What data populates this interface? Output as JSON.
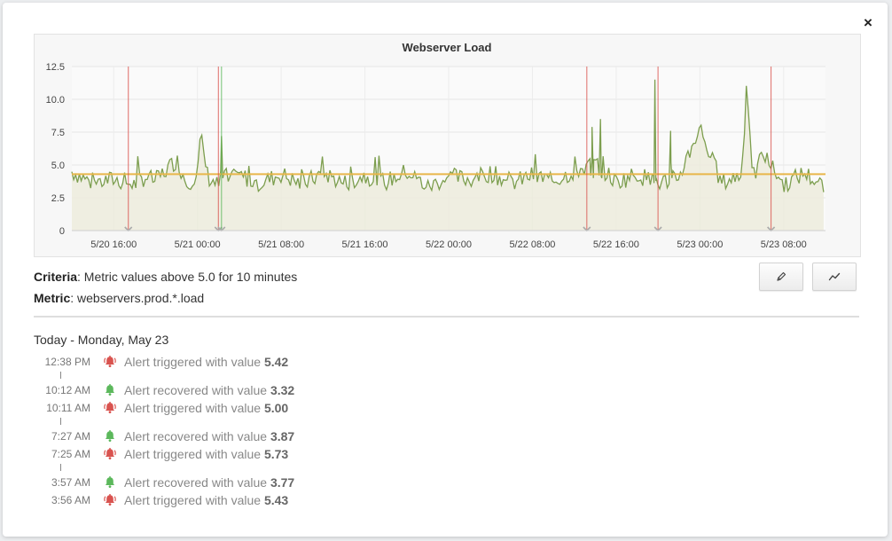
{
  "dialog": {
    "close_label": "×"
  },
  "chart_data": {
    "type": "line",
    "title": "Webserver Load",
    "xlabel": "",
    "ylabel": "",
    "ylim": [
      0,
      12.5
    ],
    "yticks": [
      "0",
      "2.5",
      "5.0",
      "7.5",
      "10.0",
      "12.5"
    ],
    "xticks": [
      "5/20 16:00",
      "5/21 00:00",
      "5/21 08:00",
      "5/21 16:00",
      "5/22 00:00",
      "5/22 08:00",
      "5/22 16:00",
      "5/23 00:00",
      "5/23 08:00"
    ],
    "x_start": "5/20 12:00",
    "x_end": "5/23 12:00",
    "grid": true,
    "threshold": 4.3,
    "series": [
      {
        "name": "",
        "color": "#7c9e4e",
        "x_hours": [
          0,
          2,
          4,
          6,
          7,
          8,
          9,
          10,
          11,
          12,
          12.3,
          13,
          14,
          14.4,
          15,
          16,
          18,
          20,
          22,
          24,
          26,
          28,
          30,
          32,
          34,
          36,
          38,
          40,
          42,
          44,
          46,
          48,
          50,
          52,
          54,
          56,
          58,
          60,
          62,
          64,
          64.5,
          65,
          66,
          68,
          70,
          72,
          74,
          74.3,
          75,
          76,
          78,
          80,
          82,
          84,
          86,
          87,
          88,
          89,
          90,
          91,
          92,
          93,
          93.5,
          94,
          95,
          96
        ],
        "values": [
          4.5,
          3.6,
          3.9,
          3.5,
          4.1,
          3.8,
          4.6,
          5.4,
          3.6,
          4.3,
          7.2,
          4.1,
          3.4,
          4.5,
          3.8,
          4.2,
          3.6,
          4.3,
          3.5,
          4.4,
          3.6,
          4.2,
          3.7,
          4.5,
          3.3,
          4.1,
          3.9,
          4.4,
          3.6,
          4.2,
          3.8,
          4.5,
          5.1,
          3.7,
          4.3,
          3.6,
          4.1,
          7.9,
          3.6,
          4.3,
          11.5,
          3.8,
          5.9,
          3.5,
          4.4,
          3.2,
          4.2,
          5.7,
          3.6,
          4.1,
          3.8,
          4.3,
          3.5,
          4.1,
          3.9,
          4.8,
          3.6,
          5.7,
          4.2,
          5.1,
          3.9,
          6.5,
          4.2,
          5.4,
          4.4,
          5.8
        ]
      }
    ],
    "alert_markers_hours": [
      5.4,
      14.0,
      49.2,
      56.0,
      66.8,
      74.5,
      76.5,
      86.2,
      90.4,
      93.2,
      95.5
    ],
    "recovery_markers_hours": [
      14.3
    ]
  },
  "criteria": {
    "label": "Criteria",
    "text": ": Metric values above 5.0 for 10 minutes"
  },
  "metric": {
    "label": "Metric",
    "text": ": webservers.prod.*.load"
  },
  "toolbar": {
    "edit_icon": "pencil-icon",
    "graph_icon": "trend-line-icon"
  },
  "history": {
    "day_header": "Today - Monday, May 23",
    "events": [
      {
        "time": "12:38 PM",
        "type": "triggered",
        "text": "Alert triggered with value ",
        "value": "5.42"
      },
      {
        "time": "10:12 AM",
        "type": "recovered",
        "text": "Alert recovered with value ",
        "value": "3.32"
      },
      {
        "time": "10:11 AM",
        "type": "triggered",
        "text": "Alert triggered with value ",
        "value": "5.00"
      },
      {
        "time": "7:27 AM",
        "type": "recovered",
        "text": "Alert recovered with value ",
        "value": "3.87"
      },
      {
        "time": "7:25 AM",
        "type": "triggered",
        "text": "Alert triggered with value ",
        "value": "5.73"
      },
      {
        "time": "3:57 AM",
        "type": "recovered",
        "text": "Alert recovered with value ",
        "value": "3.77"
      },
      {
        "time": "3:56 AM",
        "type": "triggered",
        "text": "Alert triggered with value ",
        "value": "5.43"
      }
    ]
  },
  "colors": {
    "triggered": "#d9534f",
    "recovered": "#5cb85c",
    "line": "#7c9e4e",
    "threshold": "#e8b64a",
    "alert_marker": "#d9534f",
    "recovery_marker": "#5cb85c",
    "area_fill": "#ecebdc"
  }
}
